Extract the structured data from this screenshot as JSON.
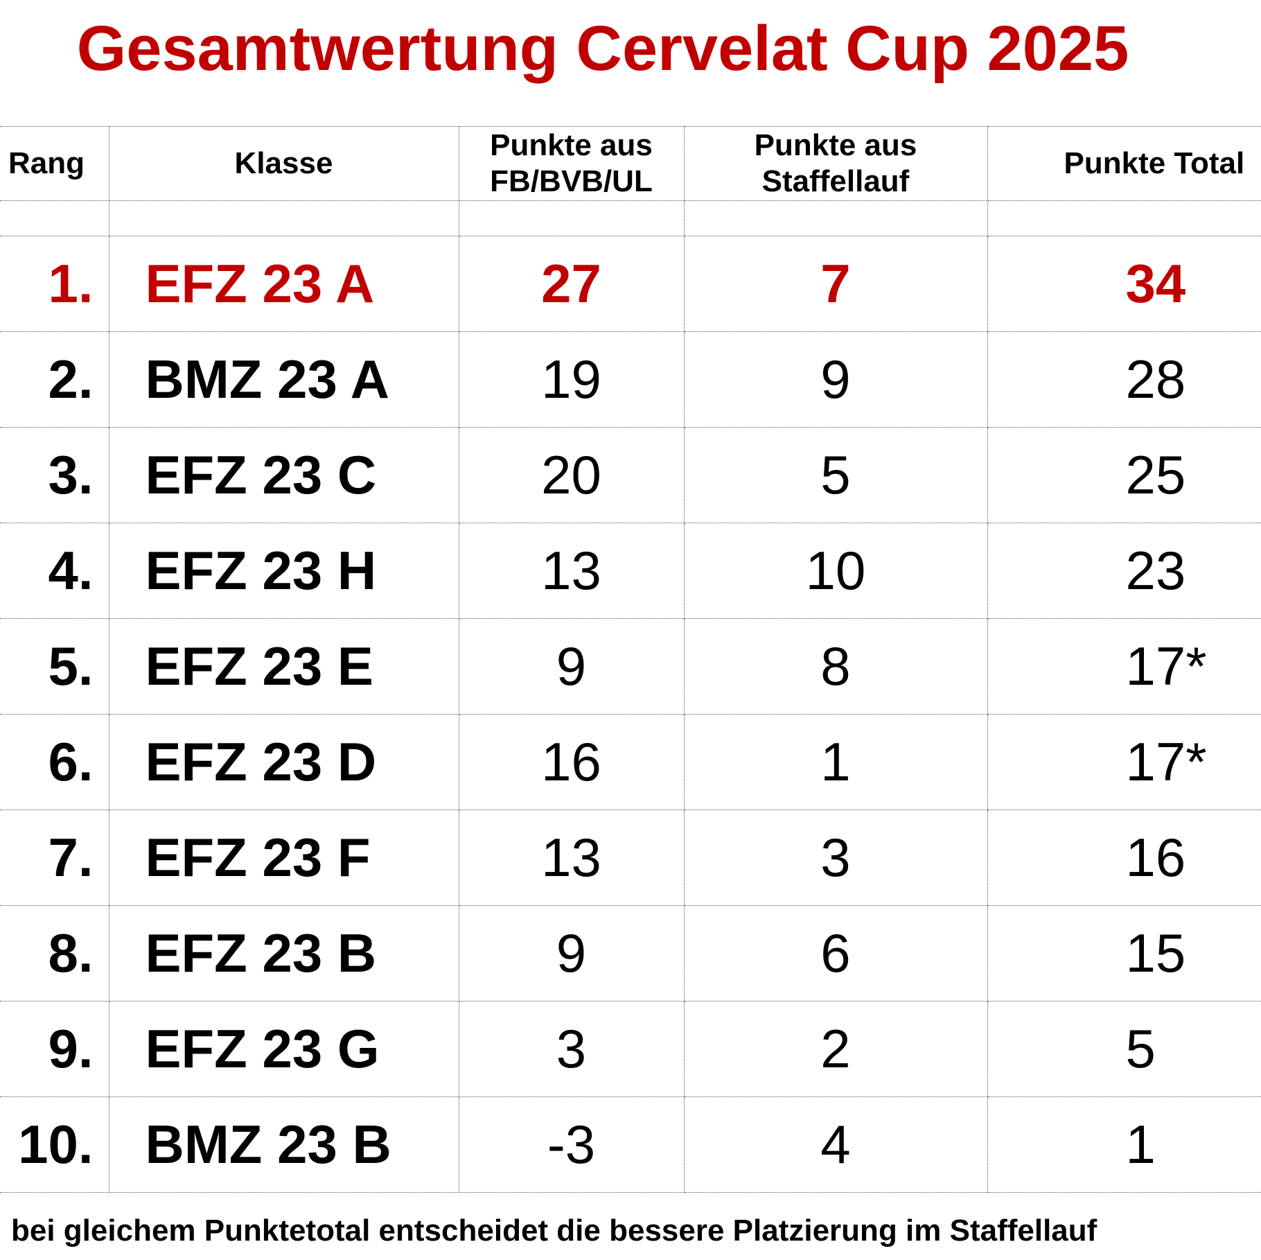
{
  "title": "Gesamtwertung Cervelat Cup 2025",
  "colors": {
    "accent": "#c00000",
    "text": "#000000",
    "grid": "#555555"
  },
  "table": {
    "headers": {
      "rang": "Rang",
      "klasse": "Klasse",
      "fb_line1": "Punkte aus",
      "fb_line2": "FB/BVB/UL",
      "staffel_line1": "Punkte aus",
      "staffel_line2": "Staffellauf",
      "total": "Punkte Total"
    },
    "rows": [
      {
        "rang": "1.",
        "klasse": "EFZ 23 A",
        "fb": "27",
        "staffel": "7",
        "total": "34"
      },
      {
        "rang": "2.",
        "klasse": "BMZ 23 A",
        "fb": "19",
        "staffel": "9",
        "total": "28"
      },
      {
        "rang": "3.",
        "klasse": "EFZ 23 C",
        "fb": "20",
        "staffel": "5",
        "total": "25"
      },
      {
        "rang": "4.",
        "klasse": "EFZ 23 H",
        "fb": "13",
        "staffel": "10",
        "total": "23"
      },
      {
        "rang": "5.",
        "klasse": "EFZ 23 E",
        "fb": "9",
        "staffel": "8",
        "total": "17*"
      },
      {
        "rang": "6.",
        "klasse": "EFZ 23 D",
        "fb": "16",
        "staffel": "1",
        "total": "17*"
      },
      {
        "rang": "7.",
        "klasse": "EFZ 23 F",
        "fb": "13",
        "staffel": "3",
        "total": "16"
      },
      {
        "rang": "8.",
        "klasse": "EFZ 23 B",
        "fb": "9",
        "staffel": "6",
        "total": "15"
      },
      {
        "rang": "9.",
        "klasse": "EFZ 23 G",
        "fb": "3",
        "staffel": "2",
        "total": "5"
      },
      {
        "rang": "10.",
        "klasse": "BMZ 23 B",
        "fb": "-3",
        "staffel": "4",
        "total": "1"
      }
    ]
  },
  "footnote": "bei gleichem Punktetotal entscheidet die bessere Platzierung im Staffellauf"
}
